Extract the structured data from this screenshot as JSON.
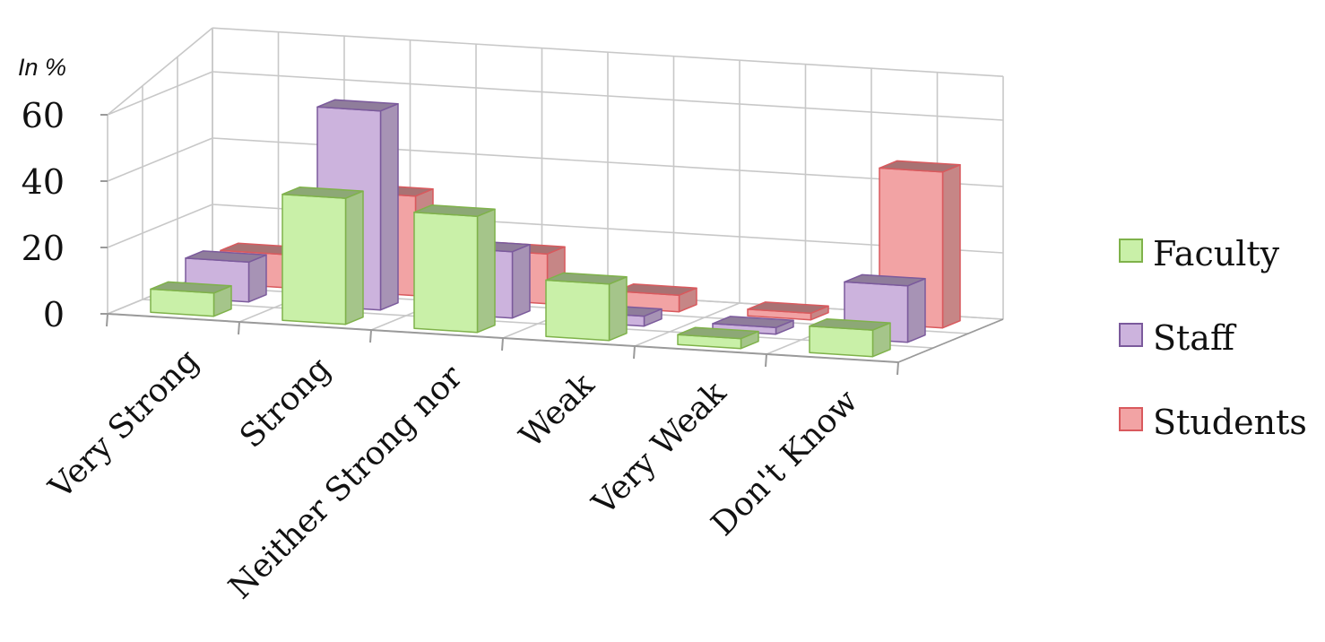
{
  "chart_data": {
    "type": "bar",
    "subtype": "3d-clustered-column",
    "ylabel": "In %",
    "ylim": [
      0,
      60
    ],
    "yticks": [
      0,
      20,
      40,
      60
    ],
    "grid": true,
    "legend_position": "right",
    "categories": [
      "Very Strong",
      "Strong",
      "Neither Strong nor",
      "Weak",
      "Very Weak",
      "Don't Know"
    ],
    "series": [
      {
        "name": "Faculty",
        "color": "#c9f0a8",
        "edge": "#7fb24a",
        "values": [
          7,
          38,
          35,
          17,
          3,
          8
        ]
      },
      {
        "name": "Staff",
        "color": "#ccb3dd",
        "edge": "#7b5a9c",
        "values": [
          12,
          60,
          20,
          3,
          2,
          17
        ]
      },
      {
        "name": "Students",
        "color": "#f2a3a4",
        "edge": "#d9595d",
        "values": [
          10,
          30,
          15,
          5,
          2,
          47
        ]
      }
    ]
  }
}
